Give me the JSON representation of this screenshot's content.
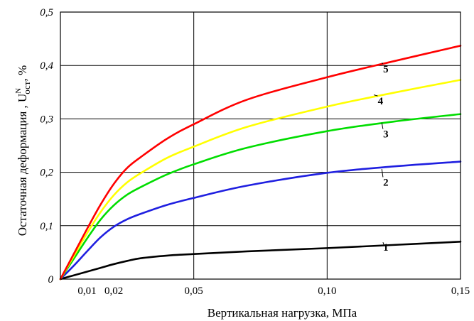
{
  "chart_data": {
    "type": "line",
    "title": "",
    "xlabel": "Вертикальная нагрузка, МПа",
    "ylabel": {
      "main": "Остаточная деформация , U",
      "sup": "N",
      "sub": "ост",
      "tail": ", %"
    },
    "xlim": [
      0,
      0.15
    ],
    "ylim": [
      0,
      0.5
    ],
    "grid": true,
    "x_ticks": [
      {
        "value": 0.01,
        "label": "0,01"
      },
      {
        "value": 0.02,
        "label": "0,02"
      },
      {
        "value": 0.05,
        "label": "0,05"
      },
      {
        "value": 0.1,
        "label": "0,10"
      },
      {
        "value": 0.15,
        "label": "0,15"
      }
    ],
    "y_ticks": [
      {
        "value": 0,
        "label": "0"
      },
      {
        "value": 0.1,
        "label": "0,1"
      },
      {
        "value": 0.2,
        "label": "0,2"
      },
      {
        "value": 0.3,
        "label": "0,3"
      },
      {
        "value": 0.4,
        "label": "0,4"
      },
      {
        "value": 0.5,
        "label": "0,5"
      }
    ],
    "grid_x": [
      0.05,
      0.1
    ],
    "grid_y": [
      0.1,
      0.2,
      0.3,
      0.4
    ],
    "series": [
      {
        "label": "1",
        "color": "#000000",
        "x": [
          0,
          0.005,
          0.01,
          0.015,
          0.02,
          0.025,
          0.03,
          0.04,
          0.05,
          0.07,
          0.1,
          0.125,
          0.15
        ],
        "y": [
          0,
          0.007,
          0.014,
          0.021,
          0.028,
          0.034,
          0.039,
          0.044,
          0.047,
          0.052,
          0.058,
          0.064,
          0.07
        ],
        "label_at": {
          "x": 0.122,
          "y": 0.053,
          "lx": 0.1215,
          "ly": 0.062
        }
      },
      {
        "label": "2",
        "color": "#1f1fe0",
        "x": [
          0,
          0.005,
          0.01,
          0.015,
          0.02,
          0.025,
          0.03,
          0.04,
          0.05,
          0.07,
          0.1,
          0.125,
          0.15
        ],
        "y": [
          0,
          0.025,
          0.052,
          0.078,
          0.098,
          0.112,
          0.122,
          0.139,
          0.152,
          0.175,
          0.199,
          0.211,
          0.22
        ],
        "label_at": {
          "x": 0.122,
          "y": 0.175,
          "lx": 0.1205,
          "ly": 0.206
        }
      },
      {
        "label": "3",
        "color": "#00dd00",
        "x": [
          0,
          0.005,
          0.01,
          0.015,
          0.02,
          0.025,
          0.03,
          0.04,
          0.05,
          0.07,
          0.1,
          0.125,
          0.15
        ],
        "y": [
          0,
          0.038,
          0.076,
          0.111,
          0.138,
          0.158,
          0.172,
          0.196,
          0.215,
          0.246,
          0.277,
          0.295,
          0.309
        ],
        "label_at": {
          "x": 0.122,
          "y": 0.265,
          "lx": 0.1205,
          "ly": 0.293
        }
      },
      {
        "label": "4",
        "color": "#ffff00",
        "x": [
          0,
          0.005,
          0.01,
          0.015,
          0.02,
          0.025,
          0.03,
          0.04,
          0.05,
          0.07,
          0.1,
          0.125,
          0.15
        ],
        "y": [
          0,
          0.043,
          0.086,
          0.125,
          0.157,
          0.181,
          0.198,
          0.227,
          0.248,
          0.285,
          0.323,
          0.349,
          0.373
        ],
        "label_at": {
          "x": 0.12,
          "y": 0.327,
          "lx": 0.1175,
          "ly": 0.345
        }
      },
      {
        "label": "5",
        "color": "#ff0000",
        "x": [
          0,
          0.005,
          0.01,
          0.015,
          0.02,
          0.025,
          0.03,
          0.04,
          0.05,
          0.07,
          0.1,
          0.125,
          0.15
        ],
        "y": [
          0,
          0.047,
          0.094,
          0.139,
          0.178,
          0.208,
          0.228,
          0.263,
          0.29,
          0.336,
          0.378,
          0.408,
          0.437
        ],
        "label_at": {
          "x": 0.122,
          "y": 0.387,
          "lx": 0.1205,
          "ly": 0.405
        }
      }
    ]
  }
}
